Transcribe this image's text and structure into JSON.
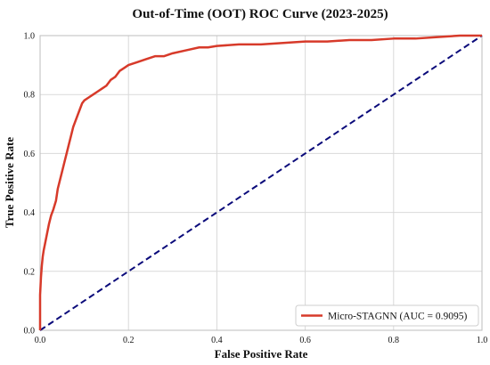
{
  "chart_data": {
    "type": "line",
    "title": "Out-of-Time (OOT) ROC Curve (2023-2025)",
    "xlabel": "False Positive Rate",
    "ylabel": "True Positive Rate",
    "xlim": [
      0.0,
      1.0
    ],
    "ylim": [
      0.0,
      1.0
    ],
    "x_ticks": [
      "0.0",
      "0.2",
      "0.4",
      "0.6",
      "0.8",
      "1.0"
    ],
    "y_ticks": [
      "0.0",
      "0.2",
      "0.4",
      "0.6",
      "0.8",
      "1.0"
    ],
    "grid": true,
    "legend_position": "lower-right",
    "series": [
      {
        "name": "Micro-STAGNN (AUC = 0.9095)",
        "color": "#d73a2a",
        "style": "solid",
        "x": [
          0.0,
          0.0,
          0.002,
          0.004,
          0.006,
          0.008,
          0.012,
          0.016,
          0.02,
          0.025,
          0.03,
          0.036,
          0.04,
          0.045,
          0.05,
          0.055,
          0.06,
          0.065,
          0.07,
          0.075,
          0.08,
          0.085,
          0.09,
          0.095,
          0.1,
          0.11,
          0.12,
          0.13,
          0.14,
          0.15,
          0.16,
          0.17,
          0.18,
          0.19,
          0.2,
          0.22,
          0.24,
          0.26,
          0.28,
          0.3,
          0.33,
          0.36,
          0.38,
          0.4,
          0.45,
          0.5,
          0.55,
          0.6,
          0.65,
          0.7,
          0.75,
          0.8,
          0.85,
          0.9,
          0.95,
          1.0
        ],
        "y": [
          0.0,
          0.12,
          0.18,
          0.22,
          0.25,
          0.27,
          0.3,
          0.33,
          0.36,
          0.39,
          0.41,
          0.44,
          0.48,
          0.51,
          0.54,
          0.57,
          0.6,
          0.63,
          0.66,
          0.69,
          0.71,
          0.73,
          0.75,
          0.77,
          0.78,
          0.79,
          0.8,
          0.81,
          0.82,
          0.83,
          0.85,
          0.86,
          0.88,
          0.89,
          0.9,
          0.91,
          0.92,
          0.93,
          0.93,
          0.94,
          0.95,
          0.96,
          0.96,
          0.965,
          0.97,
          0.97,
          0.975,
          0.98,
          0.98,
          0.985,
          0.985,
          0.99,
          0.99,
          0.995,
          1.0,
          1.0
        ]
      },
      {
        "name": "",
        "color": "#0a0a7a",
        "style": "dashed",
        "x": [
          0.0,
          1.0
        ],
        "y": [
          0.0,
          1.0
        ]
      }
    ]
  }
}
